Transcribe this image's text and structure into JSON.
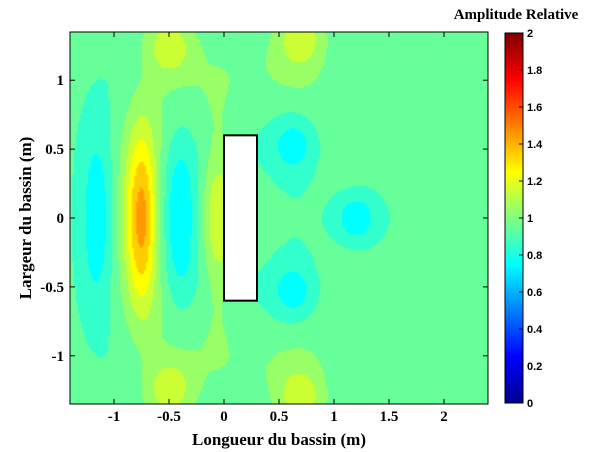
{
  "chart_data": {
    "type": "heatmap",
    "title": "",
    "xlabel": "Longueur du bassin (m)",
    "ylabel": "Largeur du bassin (m)",
    "xlim": [
      -1.4,
      2.4
    ],
    "ylim": [
      -1.35,
      1.35
    ],
    "x_ticks": [
      -1,
      -0.5,
      0,
      0.5,
      1,
      1.5,
      2
    ],
    "y_ticks": [
      -1,
      -0.5,
      0,
      0.5,
      1
    ],
    "colorbar": {
      "title": "Amplitude Relative",
      "range": [
        0,
        2
      ],
      "ticks": [
        0,
        0.2,
        0.4,
        0.6,
        0.8,
        1,
        1.2,
        1.4,
        1.6,
        1.8,
        2
      ],
      "colormap": "jet"
    },
    "obstacle": {
      "x": [
        0,
        0.3
      ],
      "y": [
        -0.6,
        0.6
      ],
      "fill": "#ffffff"
    },
    "features": [
      {
        "x": -1.15,
        "y": 0,
        "value": 0.72
      },
      {
        "x": -0.75,
        "y": 0,
        "value": 1.42
      },
      {
        "x": -0.4,
        "y": 0,
        "value": 0.75
      },
      {
        "x": -0.05,
        "y": 0,
        "value": 1.18
      },
      {
        "x": 0.65,
        "y": 0.55,
        "value": 0.76
      },
      {
        "x": 0.65,
        "y": -0.55,
        "value": 0.76
      },
      {
        "x": 1.2,
        "y": 0,
        "value": 0.7
      },
      {
        "x": -0.5,
        "y": 1.25,
        "value": 1.2
      },
      {
        "x": 0.7,
        "y": 1.3,
        "value": 1.2
      },
      {
        "x": -0.5,
        "y": -1.25,
        "value": 1.2
      },
      {
        "x": 0.7,
        "y": -1.3,
        "value": 1.2
      }
    ],
    "background_value": 0.95
  }
}
